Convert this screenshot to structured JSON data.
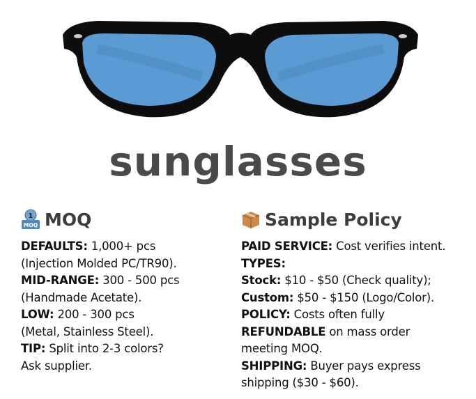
{
  "title": "sunglasses",
  "colors": {
    "lens": "#5b9bd3",
    "frame": "#0d0d0d",
    "title": "#4a4a4a"
  },
  "moq": {
    "icon": "moq-badge-icon",
    "icon_text": {
      "number": "1",
      "label": "MOQ"
    },
    "heading": "MOQ",
    "lines": [
      {
        "bold": "DEFAULTS:",
        "text": " 1,000+ pcs"
      },
      {
        "bold": "",
        "text": "(Injection Molded PC/TR90)."
      },
      {
        "bold": "MID-RANGE:",
        "text": " 300 - 500 pcs"
      },
      {
        "bold": "",
        "text": "(Handmade Acetate)."
      },
      {
        "bold": "LOW:",
        "text": " 200 - 300 pcs"
      },
      {
        "bold": "",
        "text": "(Metal, Stainless Steel)."
      },
      {
        "bold": "TIP:",
        "text": " Split into 2-3 colors?"
      },
      {
        "bold": "",
        "text": "Ask supplier."
      }
    ]
  },
  "sample_policy": {
    "icon": "package-box-icon",
    "heading": "Sample Policy",
    "lines": [
      {
        "bold": "PAID SERVICE:",
        "text": " Cost verifies intent."
      },
      {
        "bold": "TYPES:",
        "text": ""
      },
      {
        "bold": "Stock:",
        "text": " $10 - $50 (Check quality);"
      },
      {
        "bold": "Custom:",
        "text": " $50 - $150 (Logo/Color)."
      },
      {
        "bold": "POLICY:",
        "text": " Costs often fully"
      },
      {
        "bold": "REFUNDABLE",
        "text": " on mass order"
      },
      {
        "bold": "",
        "text": "meeting MOQ."
      },
      {
        "bold": "SHIPPING:",
        "text": " Buyer pays express"
      },
      {
        "bold": "",
        "text": "shipping ($30 - $60)."
      }
    ]
  }
}
